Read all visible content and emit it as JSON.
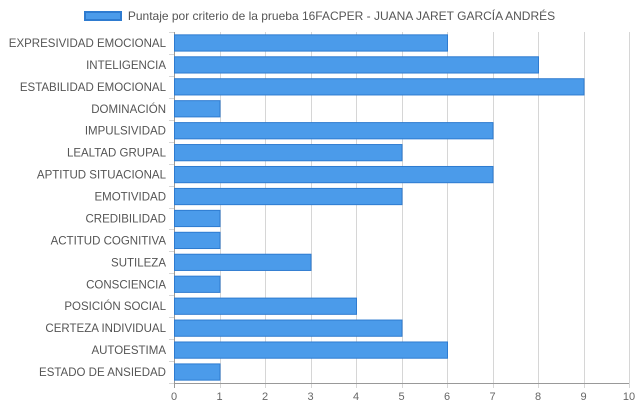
{
  "chart_data": {
    "type": "bar",
    "orientation": "horizontal",
    "title": "",
    "legend": {
      "position": "top",
      "entries": [
        "Puntaje por criterio de la prueba 16FACPER - JUANA JARET GARCÍA ANDRÉS"
      ]
    },
    "categories": [
      "EXPRESIVIDAD EMOCIONAL",
      "INTELIGENCIA",
      "ESTABILIDAD EMOCIONAL",
      "DOMINACIÓN",
      "IMPULSIVIDAD",
      "LEALTAD GRUPAL",
      "APTITUD SITUACIONAL",
      "EMOTIVIDAD",
      "CREDIBILIDAD",
      "ACTITUD COGNITIVA",
      "SUTILEZA",
      "CONSCIENCIA",
      "POSICIÓN SOCIAL",
      "CERTEZA INDIVIDUAL",
      "AUTOESTIMA",
      "ESTADO DE ANSIEDAD"
    ],
    "series": [
      {
        "name": "Puntaje por criterio de la prueba 16FACPER - JUANA JARET GARCÍA ANDRÉS",
        "values": [
          6,
          8,
          9,
          1,
          7,
          5,
          7,
          5,
          1,
          1,
          3,
          1,
          4,
          5,
          6,
          1
        ],
        "color": "#4b9bea",
        "border_color": "#2e7bd0"
      }
    ],
    "xlim": [
      0,
      10
    ],
    "x_ticks": [
      "0",
      "1",
      "2",
      "3",
      "4",
      "5",
      "6",
      "7",
      "8",
      "9",
      "10"
    ],
    "grid": true,
    "xlabel": "",
    "ylabel": ""
  }
}
